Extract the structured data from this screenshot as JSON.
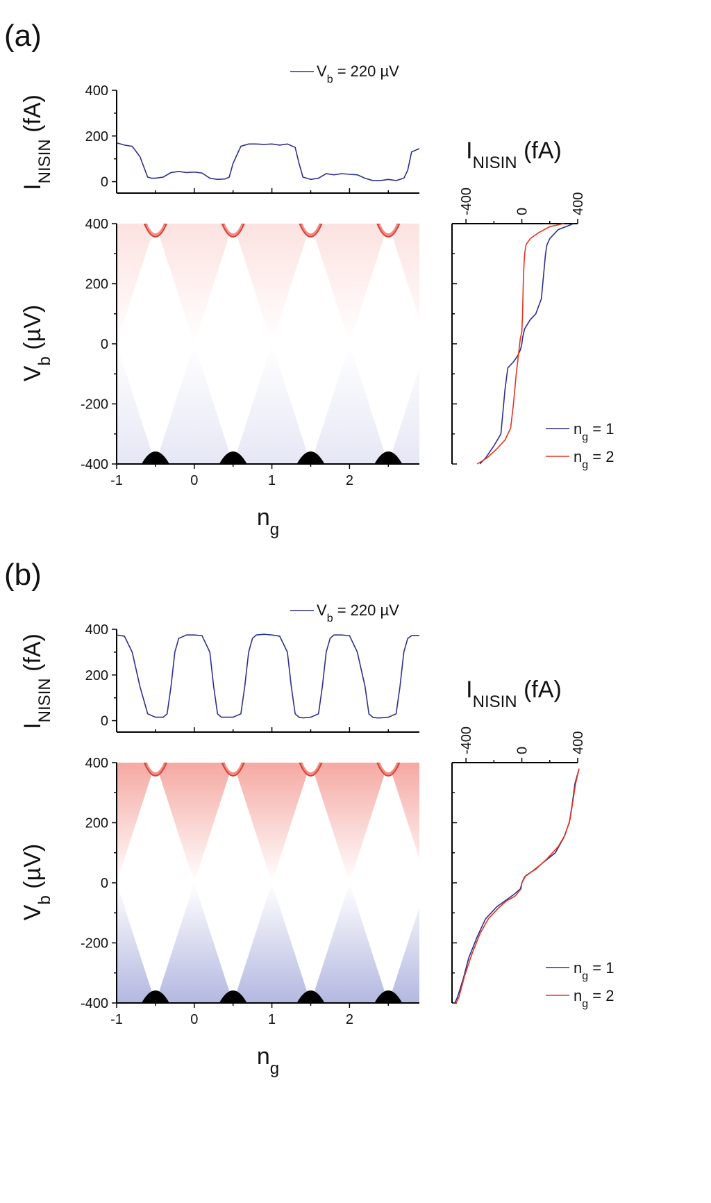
{
  "panels": [
    {
      "label": "(a)",
      "top_chart": {
        "ylabel_base": "I",
        "ylabel_sub": "NISIN",
        "ylabel_unit": " (fA)",
        "legend_label": "V",
        "legend_sub": "b",
        "legend_value": " = 220 µV"
      },
      "map_chart": {
        "ylabel_base": "V",
        "ylabel_sub": "b",
        "ylabel_unit": " (µV)",
        "xlabel_base": "n",
        "xlabel_sub": "g"
      },
      "side_chart": {
        "xlabel_base": "I",
        "xlabel_sub": "NISIN",
        "xlabel_unit": " (fA)",
        "legend": [
          {
            "label": "n",
            "sub": "g",
            "value": " = 1"
          },
          {
            "label": "n",
            "sub": "g",
            "value": " = 2"
          }
        ]
      }
    },
    {
      "label": "(b)",
      "top_chart": {
        "ylabel_base": "I",
        "ylabel_sub": "NISIN",
        "ylabel_unit": " (fA)",
        "legend_label": "V",
        "legend_sub": "b",
        "legend_value": " = 220 µV"
      },
      "map_chart": {
        "ylabel_base": "V",
        "ylabel_sub": "b",
        "ylabel_unit": " (µV)",
        "xlabel_base": "n",
        "xlabel_sub": "g"
      },
      "side_chart": {
        "xlabel_base": "I",
        "xlabel_sub": "NISIN",
        "xlabel_unit": " (fA)",
        "legend": [
          {
            "label": "n",
            "sub": "g",
            "value": " = 1"
          },
          {
            "label": "n",
            "sub": "g",
            "value": " = 2"
          }
        ]
      }
    }
  ],
  "colors": {
    "series_blue": "#2b2f8f",
    "series_red": "#e8321e",
    "map_positive": "#f28c84",
    "map_negative": "#9aa0d6",
    "map_black": "#000000"
  },
  "chart_data": [
    {
      "type": "line",
      "panel": "(a)",
      "title": "",
      "xlabel": "n_g",
      "ylabel": "I_NISIN (fA)",
      "xlim": [
        -1,
        2.9
      ],
      "ylim": [
        -50,
        400
      ],
      "yticks": [
        0,
        200,
        400
      ],
      "series": [
        {
          "name": "V_b = 220 µV",
          "x": [
            -1.0,
            -0.9,
            -0.8,
            -0.7,
            -0.6,
            -0.55,
            -0.5,
            -0.4,
            -0.3,
            -0.2,
            -0.1,
            0.0,
            0.1,
            0.2,
            0.3,
            0.4,
            0.45,
            0.5,
            0.6,
            0.7,
            0.8,
            0.9,
            1.0,
            1.1,
            1.2,
            1.3,
            1.35,
            1.4,
            1.45,
            1.5,
            1.6,
            1.7,
            1.8,
            1.9,
            2.0,
            2.1,
            2.2,
            2.3,
            2.4,
            2.5,
            2.6,
            2.7,
            2.75,
            2.8,
            2.9
          ],
          "y": [
            170,
            160,
            155,
            110,
            20,
            15,
            15,
            20,
            40,
            45,
            40,
            42,
            38,
            15,
            10,
            12,
            20,
            80,
            155,
            165,
            165,
            163,
            165,
            160,
            165,
            150,
            80,
            20,
            15,
            10,
            15,
            35,
            30,
            35,
            32,
            30,
            15,
            5,
            5,
            10,
            5,
            15,
            50,
            130,
            145
          ]
        }
      ]
    },
    {
      "type": "heatmap",
      "panel": "(a)",
      "title": "",
      "xlabel": "n_g",
      "ylabel": "V_b (µV)",
      "xlim": [
        -1,
        2.9
      ],
      "ylim": [
        -400,
        400
      ],
      "xticks": [
        -1,
        0,
        1,
        2
      ],
      "yticks": [
        -400,
        -200,
        0,
        200,
        400
      ],
      "degeneracy_points_ng": [
        -0.5,
        0.5,
        1.5,
        2.5
      ],
      "diamond_half_height_uV": 380,
      "background_intensity": 0.25
    },
    {
      "type": "line",
      "panel": "(a)",
      "title": "",
      "xlabel": "I_NISIN (fA)",
      "ylabel": "V_b (µV)",
      "xlim": [
        -500,
        400
      ],
      "ylim": [
        -400,
        400
      ],
      "xticks": [
        -400,
        0,
        400
      ],
      "series": [
        {
          "name": "n_g = 1",
          "I": [
            -300,
            -260,
            -200,
            -150,
            -140,
            -130,
            -120,
            -100,
            -60,
            -30,
            -10,
            0,
            5,
            20,
            60,
            100,
            140,
            150,
            160,
            170,
            180,
            200,
            260,
            370
          ],
          "V": [
            -400,
            -380,
            -340,
            -300,
            -250,
            -200,
            -150,
            -80,
            -60,
            -40,
            -20,
            0,
            20,
            50,
            80,
            100,
            150,
            200,
            250,
            300,
            330,
            350,
            380,
            400
          ]
        },
        {
          "name": "n_g = 2",
          "I": [
            -320,
            -250,
            -180,
            -120,
            -80,
            -60,
            -40,
            -20,
            -15,
            -10,
            0,
            5,
            10,
            15,
            20,
            30,
            60,
            120,
            200,
            300
          ],
          "V": [
            -400,
            -380,
            -350,
            -320,
            -280,
            -200,
            -100,
            -20,
            0,
            20,
            40,
            100,
            200,
            260,
            300,
            330,
            350,
            370,
            390,
            400
          ]
        }
      ]
    },
    {
      "type": "line",
      "panel": "(b)",
      "title": "",
      "xlabel": "n_g",
      "ylabel": "I_NISIN (fA)",
      "xlim": [
        -1,
        2.9
      ],
      "ylim": [
        -50,
        400
      ],
      "yticks": [
        0,
        200,
        400
      ],
      "series": [
        {
          "name": "V_b = 220 µV",
          "x": [
            -1.0,
            -0.9,
            -0.8,
            -0.7,
            -0.6,
            -0.5,
            -0.4,
            -0.35,
            -0.3,
            -0.25,
            -0.2,
            -0.1,
            0.0,
            0.1,
            0.2,
            0.25,
            0.3,
            0.35,
            0.4,
            0.5,
            0.6,
            0.65,
            0.7,
            0.75,
            0.8,
            0.9,
            1.0,
            1.1,
            1.2,
            1.25,
            1.3,
            1.35,
            1.4,
            1.5,
            1.6,
            1.65,
            1.7,
            1.75,
            1.8,
            1.9,
            2.0,
            2.1,
            2.2,
            2.25,
            2.3,
            2.35,
            2.4,
            2.5,
            2.6,
            2.65,
            2.7,
            2.75,
            2.8,
            2.9
          ],
          "y": [
            375,
            370,
            300,
            150,
            30,
            15,
            15,
            30,
            150,
            300,
            360,
            375,
            375,
            372,
            300,
            150,
            30,
            15,
            15,
            15,
            30,
            150,
            300,
            360,
            375,
            378,
            375,
            370,
            300,
            150,
            30,
            15,
            12,
            15,
            30,
            150,
            300,
            360,
            375,
            375,
            372,
            300,
            150,
            30,
            15,
            12,
            12,
            15,
            30,
            150,
            300,
            360,
            372,
            372
          ]
        }
      ]
    },
    {
      "type": "heatmap",
      "panel": "(b)",
      "title": "",
      "xlabel": "n_g",
      "ylabel": "V_b (µV)",
      "xlim": [
        -1,
        2.9
      ],
      "ylim": [
        -400,
        400
      ],
      "xticks": [
        -1,
        0,
        1,
        2
      ],
      "yticks": [
        -400,
        -200,
        0,
        200,
        400
      ],
      "degeneracy_points_ng": [
        -0.5,
        0.5,
        1.5,
        2.5
      ],
      "diamond_half_height_uV": 380,
      "background_intensity": 0.75
    },
    {
      "type": "line",
      "panel": "(b)",
      "title": "",
      "xlabel": "I_NISIN (fA)",
      "ylabel": "V_b (µV)",
      "xlim": [
        -500,
        400
      ],
      "ylim": [
        -400,
        400
      ],
      "xticks": [
        -400,
        0,
        400
      ],
      "series": [
        {
          "name": "n_g = 1",
          "I": [
            -480,
            -460,
            -420,
            -380,
            -320,
            -260,
            -180,
            -120,
            -60,
            -10,
            0,
            20,
            80,
            160,
            240,
            300,
            340,
            360,
            380,
            410
          ],
          "V": [
            -400,
            -380,
            -320,
            -250,
            -180,
            -120,
            -80,
            -60,
            -40,
            -20,
            0,
            20,
            40,
            70,
            100,
            150,
            200,
            260,
            330,
            380
          ]
        },
        {
          "name": "n_g = 2",
          "I": [
            -470,
            -450,
            -410,
            -360,
            -300,
            -240,
            -170,
            -110,
            -50,
            -5,
            0,
            30,
            100,
            180,
            260,
            310,
            345,
            365,
            385,
            410
          ],
          "V": [
            -400,
            -380,
            -310,
            -240,
            -170,
            -120,
            -85,
            -60,
            -45,
            -20,
            0,
            25,
            45,
            80,
            120,
            160,
            210,
            270,
            330,
            380
          ]
        }
      ]
    }
  ]
}
